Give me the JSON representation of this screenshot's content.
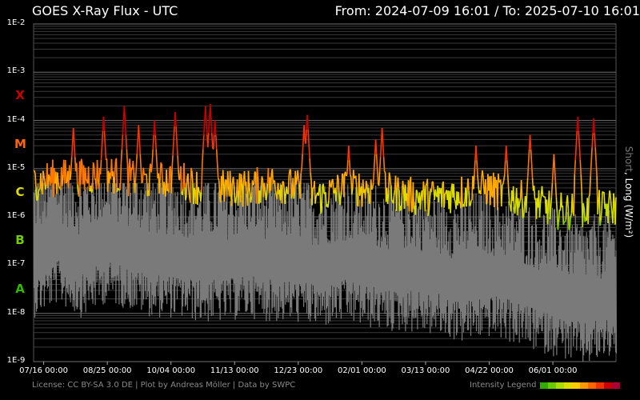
{
  "header": {
    "title": "GOES X-Ray Flux - UTC",
    "range": "From: 2024-07-09 16:01  /  To: 2025-07-10 16:01"
  },
  "side_label": {
    "short": "Short",
    "separator": ", ",
    "long": "Long (W/m²)"
  },
  "footer": {
    "license": "License: CC BY-SA 3.0 DE | Plot by Andreas Möller | Data by SWPC",
    "legend_label": "Intensity Legend",
    "legend_colors": [
      "#33aa00",
      "#66cc00",
      "#aadd00",
      "#dddd00",
      "#ffcc00",
      "#ff9900",
      "#ff6600",
      "#ee3300",
      "#cc0000",
      "#aa0033"
    ]
  },
  "chart_data": {
    "type": "line",
    "yscale": "log",
    "ylim": [
      1e-09,
      0.01
    ],
    "y_ticks": [
      "1E-9",
      "1E-8",
      "1E-7",
      "1E-6",
      "1E-5",
      "1E-4",
      "1E-3",
      "1E-2"
    ],
    "flare_classes": [
      {
        "label": "A",
        "color": "#33bb00"
      },
      {
        "label": "B",
        "color": "#77cc00"
      },
      {
        "label": "C",
        "color": "#dddd00"
      },
      {
        "label": "M",
        "color": "#ff6600"
      },
      {
        "label": "X",
        "color": "#cc0000"
      }
    ],
    "x_ticks": [
      "07/16 00:00",
      "08/25 00:00",
      "10/04 00:00",
      "11/13 00:00",
      "12/23 00:00",
      "02/01 00:00",
      "03/13 00:00",
      "04/22 00:00",
      "06/01 00:00"
    ],
    "x_tick_offsets_days": [
      6.33,
      46.33,
      86.33,
      126.33,
      166.33,
      206.33,
      246.33,
      286.33,
      326.33
    ],
    "x_span_days": 366,
    "grid": true,
    "series": [
      {
        "name": "Long",
        "color_by_intensity": true,
        "x_days": [
          0,
          15,
          30,
          45,
          60,
          75,
          90,
          105,
          120,
          135,
          150,
          165,
          180,
          195,
          210,
          225,
          240,
          255,
          270,
          285,
          300,
          315,
          330,
          345,
          366
        ],
        "baseline": [
          4e-06,
          5e-06,
          5e-06,
          6e-06,
          5e-06,
          4e-06,
          5e-06,
          3e-06,
          3e-06,
          3e-06,
          4e-06,
          3e-06,
          2e-06,
          3e-06,
          3e-06,
          2.5e-06,
          2e-06,
          2e-06,
          2.5e-06,
          3e-06,
          2e-06,
          1.5e-06,
          1e-06,
          1e-06,
          1.2e-06
        ],
        "peaks": [
          {
            "day": 25,
            "value": 7e-05
          },
          {
            "day": 44,
            "value": 0.00012
          },
          {
            "day": 57,
            "value": 0.0002
          },
          {
            "day": 66,
            "value": 8e-05
          },
          {
            "day": 76,
            "value": 0.0001
          },
          {
            "day": 89,
            "value": 0.00015
          },
          {
            "day": 108,
            "value": 0.0002
          },
          {
            "day": 111,
            "value": 0.00022
          },
          {
            "day": 114,
            "value": 0.0001
          },
          {
            "day": 170,
            "value": 8e-05
          },
          {
            "day": 172,
            "value": 0.00013
          },
          {
            "day": 198,
            "value": 3e-05
          },
          {
            "day": 215,
            "value": 4e-05
          },
          {
            "day": 219,
            "value": 7e-05
          },
          {
            "day": 278,
            "value": 3e-05
          },
          {
            "day": 297,
            "value": 3e-05
          },
          {
            "day": 312,
            "value": 5e-05
          },
          {
            "day": 327,
            "value": 2e-05
          },
          {
            "day": 342,
            "value": 0.00012
          },
          {
            "day": 352,
            "value": 0.00011
          }
        ]
      },
      {
        "name": "Short",
        "color": "#7a7a7a",
        "x_days": [
          0,
          15,
          30,
          45,
          60,
          75,
          90,
          105,
          120,
          135,
          150,
          165,
          180,
          195,
          210,
          225,
          240,
          255,
          270,
          285,
          300,
          315,
          330,
          345,
          366
        ],
        "baseline": [
          1e-07,
          2e-07,
          1e-07,
          2e-07,
          1.5e-07,
          1e-07,
          1e-07,
          8e-08,
          8e-08,
          1e-07,
          8e-08,
          8e-08,
          6e-08,
          8e-08,
          6e-08,
          5e-08,
          5e-08,
          4e-08,
          3e-08,
          4e-08,
          3e-08,
          2e-08,
          1.5e-08,
          1e-08,
          1.5e-08
        ]
      }
    ]
  }
}
